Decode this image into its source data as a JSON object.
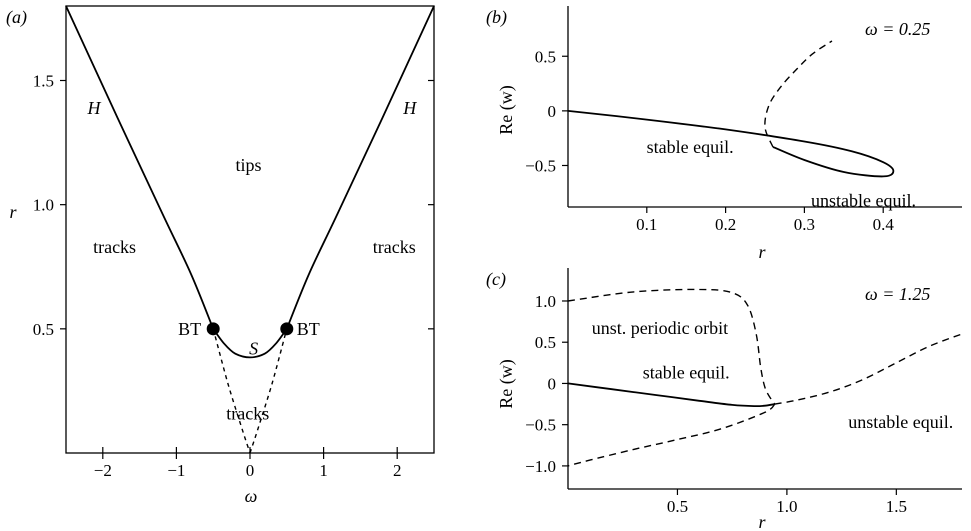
{
  "chart_data": [
    {
      "panel": "(a)",
      "type": "line",
      "xlabel": "ω",
      "ylabel": "r",
      "xlim": [
        -2.5,
        2.5
      ],
      "ylim": [
        0,
        1.8
      ],
      "xticks": [
        "−2",
        "−1",
        "0",
        "1",
        "2"
      ],
      "yticks": [
        "0.5",
        "1.0",
        "1.5"
      ],
      "grid": false,
      "series": [
        {
          "style": "solid",
          "x": [
            -2.5,
            -1.8,
            -1.2,
            -0.8,
            -0.5
          ],
          "y": [
            1.8,
            1.35,
            0.97,
            0.72,
            0.5
          ]
        },
        {
          "style": "solid",
          "x": [
            -0.5,
            -0.35,
            -0.2,
            0,
            0.2,
            0.35,
            0.5
          ],
          "y": [
            0.5,
            0.44,
            0.4,
            0.385,
            0.4,
            0.44,
            0.5
          ]
        },
        {
          "style": "solid",
          "x": [
            0.5,
            0.8,
            1.2,
            1.8,
            2.5
          ],
          "y": [
            0.5,
            0.72,
            0.97,
            1.35,
            1.8
          ]
        },
        {
          "style": "dashed",
          "x": [
            -0.5,
            -0.3,
            -0.1,
            0
          ],
          "y": [
            0.5,
            0.28,
            0.09,
            0
          ]
        },
        {
          "style": "dashed",
          "x": [
            0,
            0.1,
            0.3,
            0.5
          ],
          "y": [
            0,
            0.09,
            0.28,
            0.5
          ]
        }
      ],
      "points": [
        {
          "x": -0.5,
          "y": 0.5,
          "label": "BT"
        },
        {
          "x": 0.5,
          "y": 0.5,
          "label": "BT"
        }
      ],
      "annotations": [
        {
          "text": "H",
          "x": -2.12,
          "y": 1.39
        },
        {
          "text": "H",
          "x": 2.17,
          "y": 1.39
        },
        {
          "text": "tips",
          "x": -0.02,
          "y": 1.16
        },
        {
          "text": "tracks",
          "x": -1.84,
          "y": 0.83
        },
        {
          "text": "tracks",
          "x": 1.96,
          "y": 0.83
        },
        {
          "text": "S",
          "x": 0.05,
          "y": 0.42
        },
        {
          "text": "tracks",
          "x": -0.03,
          "y": 0.16
        }
      ]
    },
    {
      "panel": "(b)",
      "type": "line",
      "note": "ω = 0.25",
      "xlabel": "r",
      "ylabel": "Re (w)",
      "xlim": [
        0,
        0.5
      ],
      "ylim": [
        -0.88,
        0.96
      ],
      "xticks": [
        "0.1",
        "0.2",
        "0.3",
        "0.4"
      ],
      "yticks": [
        "0.5",
        "0",
        "−0.5"
      ],
      "grid": false,
      "series": [
        {
          "style": "solid",
          "x": [
            0,
            0.1,
            0.2,
            0.3,
            0.36,
            0.4,
            0.413,
            0.4,
            0.35,
            0.3,
            0.26
          ],
          "y": [
            0,
            -0.08,
            -0.17,
            -0.28,
            -0.37,
            -0.47,
            -0.55,
            -0.6,
            -0.56,
            -0.45,
            -0.33
          ]
        },
        {
          "style": "dashed",
          "x": [
            0.26,
            0.25,
            0.255,
            0.27,
            0.29,
            0.31,
            0.335
          ],
          "y": [
            -0.33,
            -0.15,
            0.05,
            0.22,
            0.38,
            0.52,
            0.64
          ]
        }
      ],
      "annotations": [
        {
          "text": "stable equil.",
          "x": 0.155,
          "y": -0.33
        },
        {
          "text": "unstable equil.",
          "x": 0.375,
          "y": -0.82
        }
      ]
    },
    {
      "panel": "(c)",
      "type": "line",
      "note": "ω = 1.25",
      "xlabel": "r",
      "ylabel": "Re (w)",
      "xlim": [
        0,
        1.8
      ],
      "ylim": [
        -1.28,
        1.4
      ],
      "xticks": [
        "0.5",
        "1.0",
        "1.5"
      ],
      "yticks": [
        "1.0",
        "0.5",
        "0",
        "−0.5",
        "−1.0"
      ],
      "grid": false,
      "series": [
        {
          "style": "dashed",
          "x": [
            0,
            0.3,
            0.6,
            0.75,
            0.82,
            0.86,
            0.88,
            0.9,
            0.93,
            0.945
          ],
          "y": [
            1,
            1.11,
            1.14,
            1.1,
            0.95,
            0.6,
            0.2,
            -0.05,
            -0.2,
            -0.25
          ]
        },
        {
          "style": "solid",
          "x": [
            0,
            0.2,
            0.4,
            0.6,
            0.75,
            0.85,
            0.9,
            0.945
          ],
          "y": [
            0,
            -0.07,
            -0.14,
            -0.21,
            -0.26,
            -0.275,
            -0.27,
            -0.25
          ]
        },
        {
          "style": "dashed",
          "x": [
            0.945,
            0.9,
            0.7,
            0.5,
            0.3,
            0.1,
            0
          ],
          "y": [
            -0.25,
            -0.35,
            -0.55,
            -0.68,
            -0.8,
            -0.93,
            -1
          ]
        },
        {
          "style": "dashed",
          "x": [
            0.945,
            1.05,
            1.2,
            1.35,
            1.5,
            1.65,
            1.8
          ],
          "y": [
            -0.25,
            -0.2,
            -0.1,
            0.05,
            0.25,
            0.45,
            0.6
          ]
        }
      ],
      "annotations": [
        {
          "text": "unst. periodic orbit",
          "x": 0.42,
          "y": 0.67
        },
        {
          "text": "stable equil.",
          "x": 0.54,
          "y": 0.13
        },
        {
          "text": "unstable equil.",
          "x": 1.52,
          "y": -0.47
        }
      ]
    }
  ]
}
